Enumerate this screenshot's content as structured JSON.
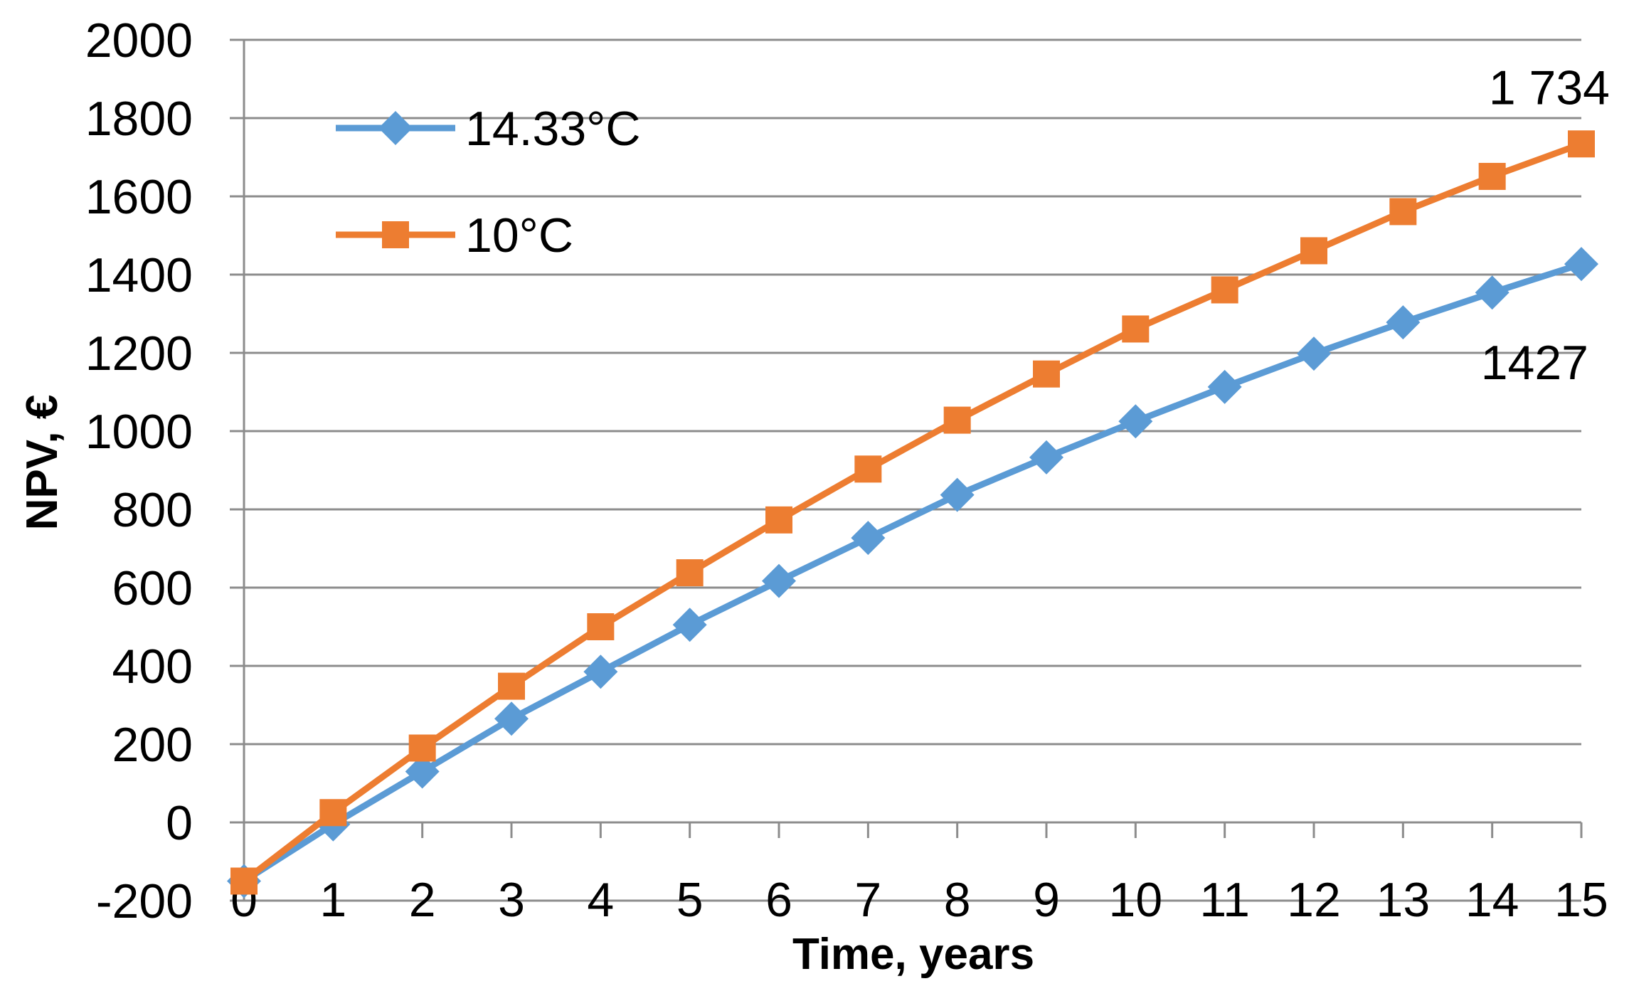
{
  "chart_data": {
    "type": "line",
    "title": "",
    "xlabel": "Time, years",
    "ylabel": "NPV, €",
    "x": [
      0,
      1,
      2,
      3,
      4,
      5,
      6,
      7,
      8,
      9,
      10,
      11,
      12,
      13,
      14,
      15
    ],
    "xlim": [
      0,
      15
    ],
    "ylim": [
      -200,
      2000
    ],
    "yticks": [
      -200,
      0,
      200,
      400,
      600,
      800,
      1000,
      1200,
      1400,
      1600,
      1800,
      2000
    ],
    "grid": true,
    "legend_position": "top-left",
    "series": [
      {
        "name": "14.33°C",
        "color": "#5B9BD5",
        "marker": "diamond",
        "values": [
          -150,
          -5,
          130,
          265,
          385,
          505,
          617,
          727,
          837,
          933,
          1025,
          1113,
          1198,
          1278,
          1354,
          1427
        ]
      },
      {
        "name": "10°C",
        "color": "#ED7D31",
        "marker": "square",
        "values": [
          -150,
          25,
          190,
          348,
          500,
          638,
          773,
          903,
          1028,
          1146,
          1261,
          1361,
          1461,
          1561,
          1651,
          1734
        ]
      }
    ],
    "annotations": [
      {
        "text": "1 734",
        "series": 1,
        "index": 15,
        "placement": "above"
      },
      {
        "text": "1427",
        "series": 0,
        "index": 15,
        "placement": "below"
      }
    ]
  }
}
